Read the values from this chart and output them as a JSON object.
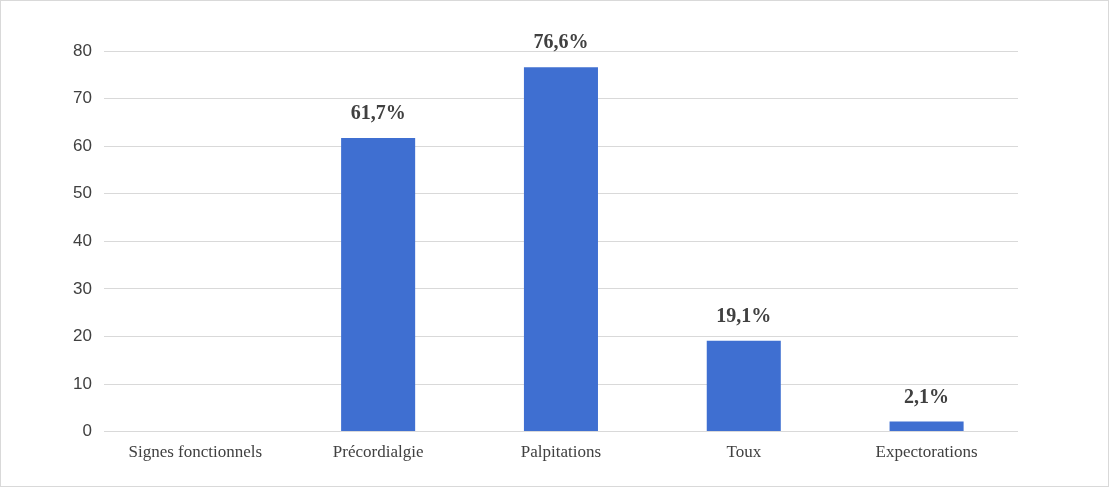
{
  "chart_data": {
    "type": "bar",
    "categories": [
      "Signes fonctionnels",
      "Précordialgie",
      "Palpitations",
      "Toux",
      "Expectorations"
    ],
    "values": [
      null,
      61.7,
      76.6,
      19.1,
      2.1
    ],
    "value_labels": [
      null,
      "61,7%",
      "76,6%",
      "19,1%",
      "2,1%"
    ],
    "color": "#3f6fd1",
    "ylim": [
      0,
      80
    ],
    "yticks": [
      0,
      10,
      20,
      30,
      40,
      50,
      60,
      70,
      80
    ],
    "grid": "y",
    "legend": false
  }
}
